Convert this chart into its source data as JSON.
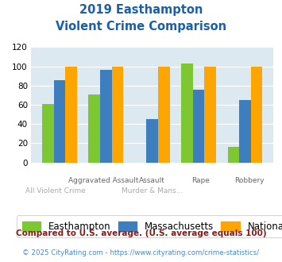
{
  "title_line1": "2019 Easthampton",
  "title_line2": "Violent Crime Comparison",
  "easthampton": [
    61,
    71,
    0,
    103,
    16
  ],
  "massachusetts": [
    86,
    96,
    45,
    76,
    65
  ],
  "national": [
    100,
    100,
    100,
    100,
    100
  ],
  "color_easthampton": "#7dc832",
  "color_massachusetts": "#3d7ebf",
  "color_national": "#ffa500",
  "ylim": [
    0,
    120
  ],
  "yticks": [
    0,
    20,
    40,
    60,
    80,
    100,
    120
  ],
  "bg_color": "#dce9f0",
  "top_labels": [
    "",
    "Aggravated Assault",
    "Assault",
    "Rape",
    "Robbery"
  ],
  "bot_labels": [
    "All Violent Crime",
    "",
    "Murder & Mans...",
    "",
    ""
  ],
  "legend_labels": [
    "Easthampton",
    "Massachusetts",
    "National"
  ],
  "footnote1": "Compared to U.S. average. (U.S. average equals 100)",
  "footnote2": "© 2025 CityRating.com - https://www.cityrating.com/crime-statistics/",
  "title_color": "#1a5fa8",
  "footnote1_color": "#8b1a1a",
  "footnote2_color": "#4a86c8"
}
